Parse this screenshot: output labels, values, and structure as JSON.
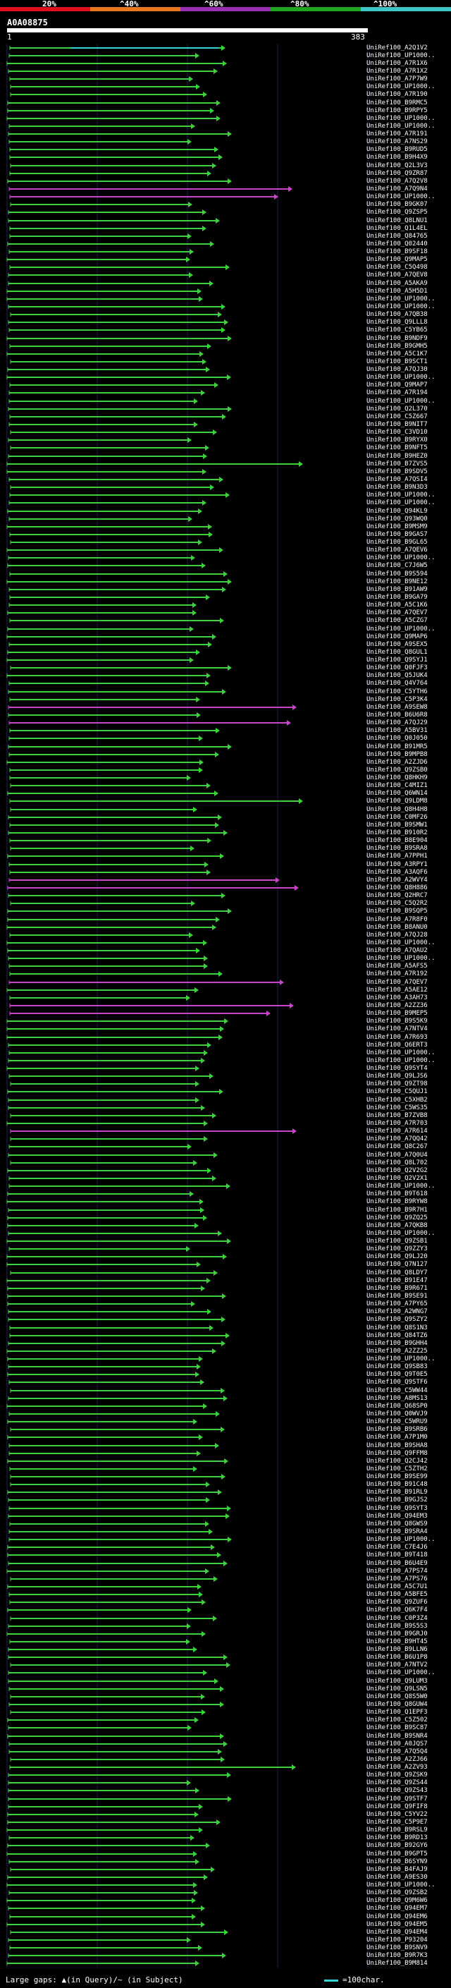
{
  "colors": {
    "match": "#3ed13e",
    "partial": "#c844c8",
    "highlight": "#38d4d4",
    "grid": "#1e1e5c",
    "axis_dark": "#0a0a2a"
  },
  "scale": {
    "labels": [
      "20%",
      "^40%",
      "^60%",
      "^80%",
      "^100%"
    ],
    "colors": [
      "#e0101e",
      "#e87820",
      "#9a2fb4",
      "#1fa51f",
      "#3dc6c6"
    ]
  },
  "query": {
    "name": "A0A08875",
    "start": "1",
    "end": "383"
  },
  "hits": {
    "labels": [
      "UniRef100_A2Q1V2",
      "UniRef100_UP1000..",
      "UniRef100_A7R1X6",
      "UniRef100_A7R1X2",
      "UniRef100_A7P7W9",
      "UniRef100_UP1000..",
      "UniRef100_A7R190",
      "UniRef100_B9RMC5",
      "UniRef100_B9RPY5",
      "UniRef100_UP1000..",
      "UniRef100_UP1000..",
      "UniRef100_A7R191",
      "UniRef100_A7NS29",
      "UniRef100_B9RUD5",
      "UniRef100_B9H4X9",
      "UniRef100_Q2L3V3",
      "UniRef100_Q9ZR87",
      "UniRef100_A7Q2V8",
      "UniRef100_A7Q9N4",
      "UniRef100_UP1000..",
      "UniRef100_B9GK07",
      "UniRef100_Q9ZSP5",
      "UniRef100_Q8LNU1",
      "UniRef100_Q1L4EL",
      "UniRef100_Q84765",
      "UniRef100_Q02440",
      "UniRef100_B9SF18",
      "UniRef100_Q9MAP5",
      "UniRef100_C5Q498",
      "UniRef100_A7QEV8",
      "UniRef100_A5AKA9",
      "UniRef100_A5H5D1",
      "UniRef100_UP1000..",
      "UniRef100_UP1000..",
      "UniRef100_A7QB38",
      "UniRef100_Q9LLL8",
      "UniRef100_C5YB65",
      "UniRef100_B9NDF9",
      "UniRef100_B9GMH5",
      "UniRef100_A5C1K7",
      "UniRef100_B9SCT1",
      "UniRef100_A7QJ30",
      "UniRef100_UP1000..",
      "UniRef100_Q9MAP7",
      "UniRef100_A7R194",
      "UniRef100_UP1000..",
      "UniRef100_Q2L370",
      "UniRef100_C5Z667",
      "UniRef100_B9NIT7",
      "UniRef100_C3VD10",
      "UniRef100_B9RYX0",
      "UniRef100_B9NFT5",
      "UniRef100_B9HEZ0",
      "UniRef100_B7ZVS5",
      "UniRef100_B9SDV5",
      "UniRef100_A7QSI4",
      "UniRef100_B9N3D3",
      "UniRef100_UP1000..",
      "UniRef100_UP1000..",
      "UniRef100_Q94KL9",
      "UniRef100_Q93WQ0",
      "UniRef100_B9MSM9",
      "UniRef100_B9GAS7",
      "UniRef100_B9GL65",
      "UniRef100_A7QEV6",
      "UniRef100_UP1000..",
      "UniRef100_C7J6W5",
      "UniRef100_B9S594",
      "UniRef100_B9NE12",
      "UniRef100_B91AW9",
      "UniRef100_B9GA79",
      "UniRef100_A5C1K6",
      "UniRef100_A7QEV7",
      "UniRef100_A5CZG7",
      "UniRef100_UP1000..",
      "UniRef100_Q9MAP6",
      "UniRef100_A9SEX5",
      "UniRef100_Q8GUL1",
      "UniRef100_Q9SYJ1",
      "UniRef100_Q0FJF3",
      "UniRef100_Q5JUK4",
      "UniRef100_Q4V764",
      "UniRef100_C5YTH6",
      "UniRef100_C5P3K4",
      "UniRef100_A9SEW8",
      "UniRef100_B6U6R8",
      "UniRef100_A7QJ29",
      "UniRef100_A5BV31",
      "UniRef100_Q0J050",
      "UniRef100_B91MR5",
      "UniRef100_B9MPB8",
      "UniRef100_A2ZJD6",
      "UniRef100_Q9ZSB0",
      "UniRef100_Q8HKH9",
      "UniRef100_C4MIZ1",
      "UniRef100_Q6WN14",
      "UniRef100_Q9LDM8",
      "UniRef100_Q8H4H8",
      "UniRef100_C0MF26",
      "UniRef100_B9SMW1",
      "UniRef100_B910R2",
      "UniRef100_B8E904",
      "UniRef100_B9SRA8",
      "UniRef100_A7PPH1",
      "UniRef100_A3RPY1",
      "UniRef100_A3AQF6",
      "UniRef100_A2WVY4",
      "UniRef100_Q8H886",
      "UniRef100_Q2HRC7",
      "UniRef100_C5Q2R2",
      "UniRef100_B9SQP5",
      "UniRef100_A7R8F0",
      "UniRef100_B8ANU0",
      "UniRef100_A7QJ28",
      "UniRef100_UP1000..",
      "UniRef100_A7QAU2",
      "UniRef100_UP1000..",
      "UniRef100_A5AFS5",
      "UniRef100_A7R192",
      "UniRef100_A7QEV7",
      "UniRef100_A5AE12",
      "UniRef100_A3AH73",
      "UniRef100_A2ZZ36",
      "UniRef100_B9MEP5",
      "UniRef100_B9S5K9",
      "UniRef100_A7NTV4",
      "UniRef100_A7R693",
      "UniRef100_Q6ERT3",
      "UniRef100_UP1000..",
      "UniRef100_UP1000..",
      "UniRef100_Q9SYT4",
      "UniRef100_Q9LJS6",
      "UniRef100_Q9ZT98",
      "UniRef100_C5QUJ1",
      "UniRef100_C5XHB2",
      "UniRef100_C5WS35",
      "UniRef100_B7ZVB8",
      "UniRef100_A7R703",
      "UniRef100_A7R614",
      "UniRef100_A7QQ42",
      "UniRef100_Q8C267",
      "UniRef100_A7Q0U4",
      "UniRef100_Q8L702",
      "UniRef100_Q2V2G2",
      "UniRef100_Q2V2X1",
      "UniRef100_UP1000..",
      "UniRef100_B9T618",
      "UniRef100_B9RYW8",
      "UniRef100_B9R7H1",
      "UniRef100_Q9ZQ25",
      "UniRef100_A7QKB8",
      "UniRef100_UP1000..",
      "UniRef100_Q9ZSB1",
      "UniRef100_Q9ZZY3",
      "UniRef100_Q9LJ20",
      "UniRef100_Q7N127",
      "UniRef100_Q8LDY7",
      "UniRef100_B91E47",
      "UniRef100_B9R671",
      "UniRef100_B9SE91",
      "UniRef100_A7PY65",
      "UniRef100_A2WNG7",
      "UniRef100_Q9SZY2",
      "UniRef100_Q8S1N3",
      "UniRef100_Q84TZ6",
      "UniRef100_B9GHH4",
      "UniRef100_A2ZZ25",
      "UniRef100_UP1000..",
      "UniRef100_Q9SB83",
      "UniRef100_Q9T0E5",
      "UniRef100_Q9STF6",
      "UniRef100_C5WW44",
      "UniRef100_A8MS13",
      "UniRef100_Q68SP0",
      "UniRef100_Q0WVJ9",
      "UniRef100_C5WRU9",
      "UniRef100_B9SRB6",
      "UniRef100_A7P1M0",
      "UniRef100_B9SHA8",
      "UniRef100_Q9FFM8",
      "UniRef100_Q2CJ42",
      "UniRef100_C5ZTH2",
      "UniRef100_B9SE99",
      "UniRef100_B91C48",
      "UniRef100_B91RL9",
      "UniRef100_B9GJS2",
      "UniRef100_Q9SYT3",
      "UniRef100_Q94EM3",
      "UniRef100_Q8GWS9",
      "UniRef100_B9SRA4",
      "UniRef100_UP1000..",
      "UniRef100_C7E4J6",
      "UniRef100_B9T418",
      "UniRef100_B6U4E9",
      "UniRef100_A7PS74",
      "UniRef100_A7PS76",
      "UniRef100_A5C7U1",
      "UniRef100_A5BFE5",
      "UniRef100_Q9ZUF6",
      "UniRef100_Q6K7F4",
      "UniRef100_C0P3Z4",
      "UniRef100_B9S5S3",
      "UniRef100_B9GRJ0",
      "UniRef100_B9HT45",
      "UniRef100_B9LLN6",
      "UniRef100_B6U1P8",
      "UniRef100_A7NTV2",
      "UniRef100_UP1000..",
      "UniRef100_Q9LUM3",
      "UniRef100_Q9LSN5",
      "UniRef100_Q8S5W0",
      "UniRef100_Q8GUW4",
      "UniRef100_Q1EPF3",
      "UniRef100_C5Z502",
      "UniRef100_B9SC87",
      "UniRef100_B9SNR4",
      "UniRef100_A0JQS7",
      "UniRef100_A7Q5Q4",
      "UniRef100_A2ZJ66",
      "UniRef100_A2ZV93",
      "UniRef100_Q9ZSK9",
      "UniRef100_Q9ZS44",
      "UniRef100_Q9ZS43",
      "UniRef100_Q9STF7",
      "UniRef100_Q9FIF8",
      "UniRef100_C5YV22",
      "UniRef100_C5P9E7",
      "UniRef100_B9RSL9",
      "UniRef100_B9RD13",
      "UniRef100_B92GY6",
      "UniRef100_B9GPT5",
      "UniRef100_B6SYN9",
      "UniRef100_B4FAJ9",
      "UniRef100_A9ES30",
      "UniRef100_UP1000..",
      "UniRef100_Q9ZSB2",
      "UniRef100_Q9M6W6",
      "UniRef100_Q94EM7",
      "UniRef100_Q94EM6",
      "UniRef100_Q94EM5",
      "UniRef100_Q94EM4",
      "UniRef100_P93204",
      "UniRef100_B9SNV9",
      "UniRef100_B9R7K3",
      "UniRef100_B9M814"
    ]
  }
}
